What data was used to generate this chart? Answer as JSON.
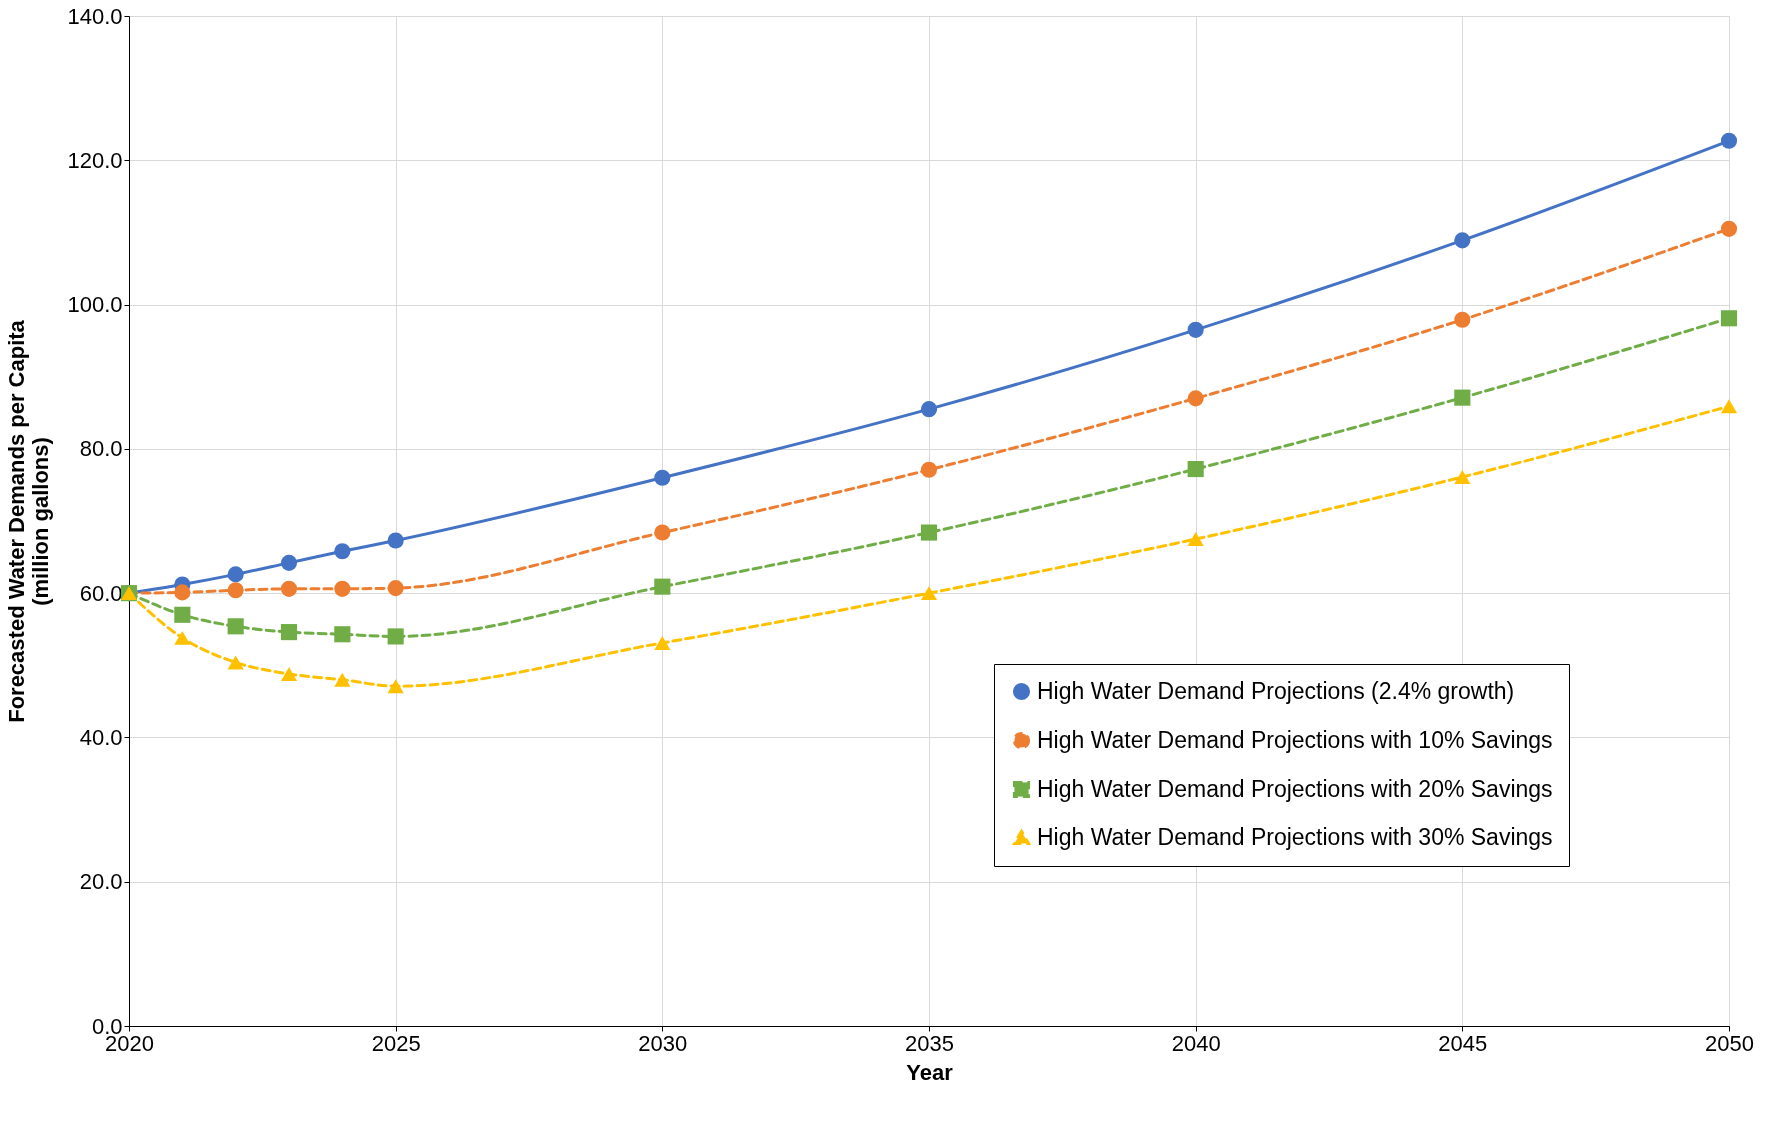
{
  "chart_data": {
    "type": "line",
    "xlabel": "Year",
    "ylabel": "Forecasted Water Demands per Capita\n(million gallons)",
    "x": [
      2020,
      2021,
      2022,
      2023,
      2024,
      2025,
      2030,
      2035,
      2040,
      2045,
      2050
    ],
    "series": [
      {
        "name": "High Water Demand Projections  (2.4% growth)",
        "color": "#4472c4",
        "marker": "circle",
        "line_style": "solid",
        "values": [
          60.0,
          61.2,
          62.6,
          64.2,
          65.8,
          67.3,
          76.0,
          85.5,
          96.5,
          108.9,
          122.7
        ]
      },
      {
        "name": "High Water Demand Projections with 10% Savings",
        "color": "#ed7d31",
        "marker": "circle",
        "line_style": "dashed",
        "values": [
          60.0,
          60.1,
          60.4,
          60.6,
          60.6,
          60.7,
          68.4,
          77.1,
          87.0,
          97.9,
          110.5
        ]
      },
      {
        "name": "High Water Demand Projections with 20% Savings",
        "color": "#70ad47",
        "marker": "square",
        "line_style": "dashed",
        "values": [
          60.0,
          57.0,
          55.4,
          54.6,
          54.3,
          54.0,
          60.9,
          68.4,
          77.2,
          87.1,
          98.1
        ]
      },
      {
        "name": "High Water Demand Projections with 30% Savings",
        "color": "#ffc000",
        "marker": "triangle",
        "line_style": "dashed",
        "values": [
          60.0,
          53.8,
          50.4,
          48.8,
          48.0,
          47.1,
          53.1,
          60.0,
          67.5,
          76.1,
          85.9
        ]
      }
    ],
    "xlim": [
      2020,
      2050
    ],
    "xticks": [
      2020,
      2025,
      2030,
      2035,
      2040,
      2045,
      2050
    ],
    "ylim": [
      0,
      140
    ],
    "yticks": [
      {
        "value": 0,
        "label": "0.0"
      },
      {
        "value": 20,
        "label": "20.0"
      },
      {
        "value": 40,
        "label": "40.0"
      },
      {
        "value": 60,
        "label": "60.0"
      },
      {
        "value": 80,
        "label": "80.0"
      },
      {
        "value": 100,
        "label": "100.0"
      },
      {
        "value": 120,
        "label": "120.0"
      },
      {
        "value": 140,
        "label": "140.0"
      }
    ],
    "grid": true,
    "legend": "bottom right"
  }
}
